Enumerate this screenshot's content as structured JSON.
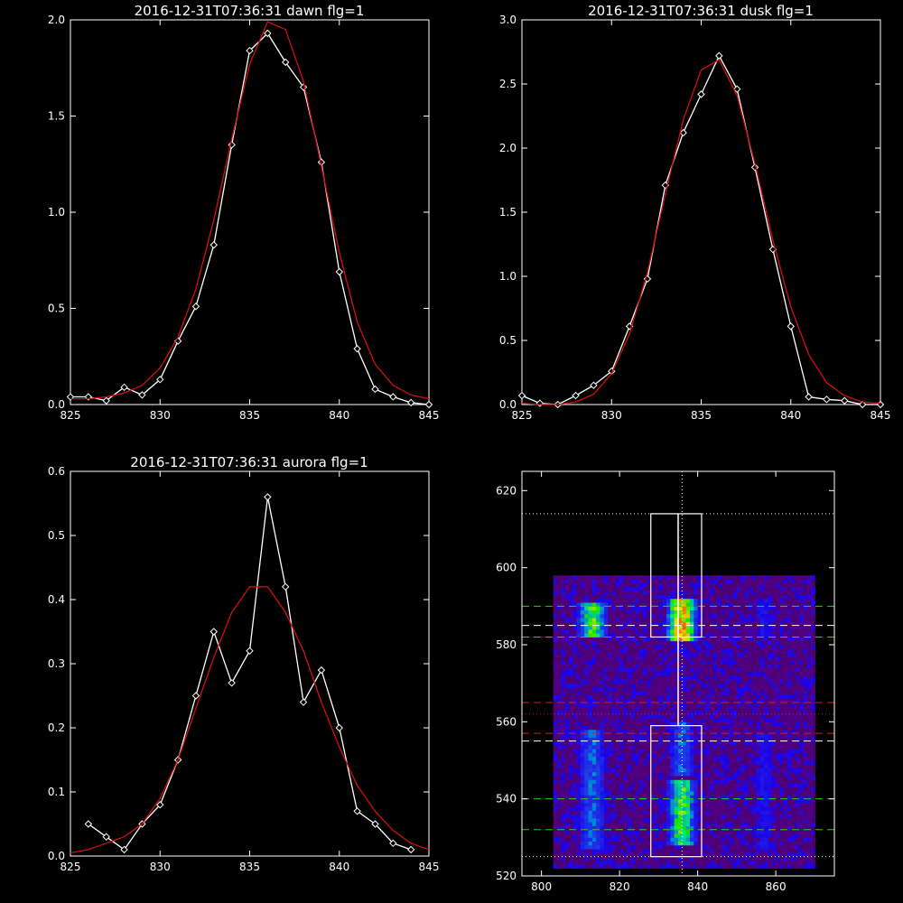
{
  "colors": {
    "background": "#000000",
    "axes": "#ffffff",
    "observed": "#ffffff",
    "fit": "#d01010"
  },
  "chart_data": [
    {
      "type": "line",
      "title": "2016-12-31T07:36:31 dawn flg=1",
      "xlim": [
        825,
        845
      ],
      "ylim": [
        0,
        2.0
      ],
      "xticks": [
        "825",
        "830",
        "835",
        "840",
        "845"
      ],
      "yticks": [
        "0.0",
        "0.5",
        "1.0",
        "1.5",
        "2.0"
      ],
      "marker": "diamond",
      "series": [
        {
          "role": "observed",
          "x": [
            825,
            826,
            827,
            828,
            829,
            830,
            831,
            832,
            833,
            834,
            835,
            836,
            837,
            838,
            839,
            840,
            841,
            842,
            843,
            844,
            845
          ],
          "y": [
            0.04,
            0.04,
            0.02,
            0.09,
            0.05,
            0.13,
            0.33,
            0.51,
            0.83,
            1.35,
            1.84,
            1.93,
            1.78,
            1.65,
            1.26,
            0.69,
            0.29,
            0.08,
            0.04,
            0.01,
            0.0
          ]
        },
        {
          "role": "fit",
          "x": [
            825,
            826,
            827,
            828,
            829,
            830,
            831,
            832,
            833,
            834,
            835,
            836,
            837,
            838,
            839,
            840,
            841,
            842,
            843,
            844,
            845
          ],
          "y": [
            0.03,
            0.03,
            0.04,
            0.06,
            0.1,
            0.19,
            0.35,
            0.6,
            0.96,
            1.38,
            1.77,
            1.99,
            1.95,
            1.68,
            1.24,
            0.79,
            0.43,
            0.21,
            0.1,
            0.05,
            0.03
          ]
        }
      ]
    },
    {
      "type": "line",
      "title": "2016-12-31T07:36:31 dusk flg=1",
      "xlim": [
        825,
        845
      ],
      "ylim": [
        0,
        3.0
      ],
      "xticks": [
        "825",
        "830",
        "835",
        "840",
        "845"
      ],
      "yticks": [
        "0.0",
        "0.5",
        "1.0",
        "1.5",
        "2.0",
        "2.5",
        "3.0"
      ],
      "marker": "diamond",
      "series": [
        {
          "role": "observed",
          "x": [
            825,
            826,
            827,
            828,
            829,
            830,
            831,
            832,
            833,
            834,
            835,
            836,
            837,
            838,
            839,
            840,
            841,
            842,
            843,
            844,
            845
          ],
          "y": [
            0.07,
            0.01,
            0.0,
            0.07,
            0.15,
            0.26,
            0.61,
            0.98,
            1.71,
            2.12,
            2.42,
            2.72,
            2.46,
            1.85,
            1.21,
            0.61,
            0.06,
            0.04,
            0.03,
            0.0,
            0.0
          ]
        },
        {
          "role": "fit",
          "x": [
            825,
            826,
            827,
            828,
            829,
            830,
            831,
            832,
            833,
            834,
            835,
            836,
            837,
            838,
            839,
            840,
            841,
            842,
            843,
            844,
            845
          ],
          "y": [
            0.01,
            0.0,
            0.0,
            0.02,
            0.08,
            0.24,
            0.55,
            1.03,
            1.64,
            2.22,
            2.61,
            2.69,
            2.41,
            1.88,
            1.28,
            0.76,
            0.39,
            0.17,
            0.07,
            0.02,
            0.01
          ]
        }
      ]
    },
    {
      "type": "line",
      "title": "2016-12-31T07:36:31 aurora flg=1",
      "xlim": [
        825,
        845
      ],
      "ylim": [
        0,
        0.6
      ],
      "xticks": [
        "825",
        "830",
        "835",
        "840",
        "845"
      ],
      "yticks": [
        "0.0",
        "0.1",
        "0.2",
        "0.3",
        "0.4",
        "0.5",
        "0.6"
      ],
      "marker": "diamond",
      "series": [
        {
          "role": "observed",
          "x": [
            826,
            827,
            828,
            829,
            830,
            831,
            832,
            833,
            834,
            835,
            836,
            837,
            838,
            839,
            840,
            841,
            842,
            843,
            844
          ],
          "y": [
            0.05,
            0.03,
            0.01,
            0.05,
            0.08,
            0.15,
            0.25,
            0.35,
            0.27,
            0.32,
            0.56,
            0.42,
            0.24,
            0.29,
            0.2,
            0.07,
            0.05,
            0.02,
            0.01
          ]
        },
        {
          "role": "fit",
          "x": [
            825,
            826,
            827,
            828,
            829,
            830,
            831,
            832,
            833,
            834,
            835,
            836,
            837,
            838,
            839,
            840,
            841,
            842,
            843,
            844,
            845
          ],
          "y": [
            0.005,
            0.01,
            0.02,
            0.03,
            0.05,
            0.09,
            0.15,
            0.23,
            0.31,
            0.38,
            0.42,
            0.42,
            0.38,
            0.32,
            0.24,
            0.17,
            0.11,
            0.07,
            0.04,
            0.02,
            0.01
          ]
        }
      ]
    },
    {
      "type": "heatmap",
      "xlim": [
        795,
        875
      ],
      "ylim": [
        520,
        625
      ],
      "xticks": [
        "800",
        "820",
        "840",
        "860"
      ],
      "yticks": [
        "520",
        "540",
        "560",
        "580",
        "600",
        "620"
      ],
      "columns": [
        {
          "x": 813,
          "color": "blue",
          "bands": [
            [
              582,
              591,
              "high"
            ],
            [
              527,
              558,
              "medium"
            ]
          ]
        },
        {
          "x": 836,
          "color": "green",
          "bands": [
            [
              581,
              592,
              "peak"
            ],
            [
              528,
              545,
              "high"
            ],
            [
              546,
              560,
              "medium"
            ]
          ]
        },
        {
          "x": 857,
          "color": "blue",
          "bands": [
            [
              582,
              592,
              "low"
            ],
            [
              527,
              557,
              "low"
            ]
          ]
        }
      ],
      "boxes": [
        {
          "x": [
            828,
            841
          ],
          "y": [
            582,
            614
          ]
        },
        {
          "x": [
            828,
            841
          ],
          "y": [
            525,
            559
          ]
        }
      ],
      "hlines": [
        {
          "y": 614,
          "style": "dotted",
          "color": "#ffffff"
        },
        {
          "y": 590,
          "style": "dashed",
          "color": "#20d020"
        },
        {
          "y": 585,
          "style": "dashed",
          "color": "#ffffff"
        },
        {
          "y": 582,
          "style": "dashed",
          "color": "#20d020"
        },
        {
          "y": 565,
          "style": "dashed",
          "color": "#d02020"
        },
        {
          "y": 562,
          "style": "dotted",
          "color": "#d02020"
        },
        {
          "y": 557,
          "style": "dashed",
          "color": "#d02020"
        },
        {
          "y": 555,
          "style": "dashed",
          "color": "#ffffff"
        },
        {
          "y": 540,
          "style": "dashed",
          "color": "#20d020"
        },
        {
          "y": 532,
          "style": "dashed",
          "color": "#20d020"
        },
        {
          "y": 525,
          "style": "dotted",
          "color": "#ffffff"
        }
      ],
      "vlines": [
        {
          "x": 836,
          "style": "dotted",
          "color": "#ffffff"
        }
      ],
      "profile_line": {
        "x": 835,
        "y": [
          559,
          614
        ],
        "color": "#ffffff"
      }
    }
  ]
}
